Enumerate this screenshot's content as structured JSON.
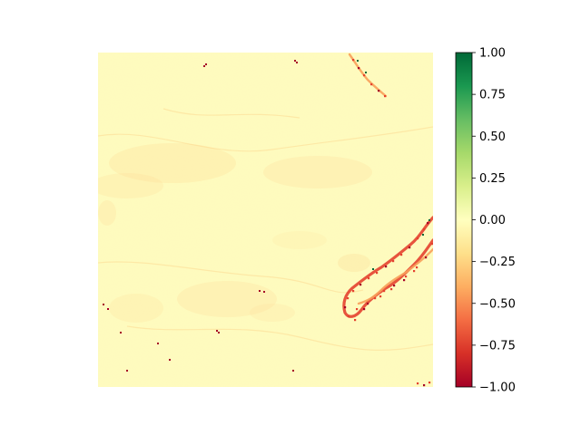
{
  "chart_data": {
    "type": "heatmap",
    "title": "",
    "xlabel": "",
    "ylabel": "",
    "colormap": "RdYlGn",
    "colors": {
      "background": "#fefcbf",
      "base_pale": "#fdf3ae",
      "light_orange": "#fdd38a",
      "mid_orange": "#f8a05a",
      "red": "#e4412f",
      "dark_red": "#a50026",
      "green_dark": "#006837"
    },
    "colorbar": {
      "vmin": -1.0,
      "vmax": 1.0,
      "ticks": [
        1.0,
        0.75,
        0.5,
        0.25,
        0.0,
        -0.25,
        -0.5,
        -0.75,
        -1.0
      ],
      "tick_labels": [
        "1.00",
        "0.75",
        "0.50",
        "0.25",
        "0.00",
        "−0.25",
        "−0.50",
        "−0.75",
        "−1.00"
      ],
      "stops": [
        {
          "value": 1.0,
          "color": "#006837"
        },
        {
          "value": 0.8,
          "color": "#1a9850"
        },
        {
          "value": 0.6,
          "color": "#66bd63"
        },
        {
          "value": 0.4,
          "color": "#a6d96a"
        },
        {
          "value": 0.2,
          "color": "#d9ef8b"
        },
        {
          "value": 0.0,
          "color": "#ffffbf"
        },
        {
          "value": -0.2,
          "color": "#fee08b"
        },
        {
          "value": -0.4,
          "color": "#fdae61"
        },
        {
          "value": -0.6,
          "color": "#f46d43"
        },
        {
          "value": -0.8,
          "color": "#d73027"
        },
        {
          "value": -1.0,
          "color": "#a50026"
        }
      ]
    },
    "axes_visible": false,
    "grid": false
  }
}
